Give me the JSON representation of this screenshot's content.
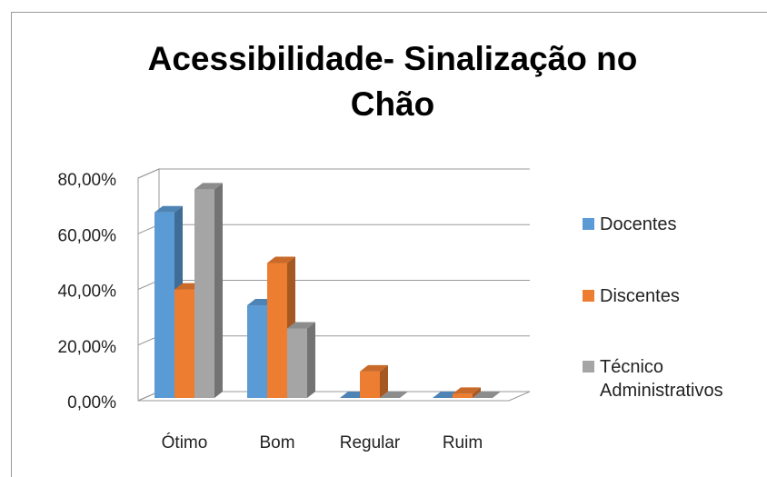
{
  "chart_data": {
    "type": "bar3d",
    "title": "Acessibilidade- Sinalização no Chão",
    "categories": [
      "Ótimo",
      "Bom",
      "Regular",
      "Ruim"
    ],
    "series": [
      {
        "name": "Docentes",
        "color": "#5b9bd5",
        "values": [
          66.7,
          33.3,
          0,
          0
        ]
      },
      {
        "name": "Discentes",
        "color": "#ed7d31",
        "values": [
          39,
          48.5,
          9.5,
          1.5
        ]
      },
      {
        "name": "Técnico Administrativos",
        "color": "#a5a5a5",
        "values": [
          75,
          25,
          0,
          0
        ]
      }
    ],
    "ylim": [
      0,
      80
    ],
    "yticks": [
      {
        "value": 0,
        "label": "0,00%"
      },
      {
        "value": 20,
        "label": "20,00%"
      },
      {
        "value": 40,
        "label": "40,00%"
      },
      {
        "value": 60,
        "label": "60,00%"
      },
      {
        "value": 80,
        "label": "80,00%"
      }
    ],
    "grid": true,
    "legend": "right"
  }
}
